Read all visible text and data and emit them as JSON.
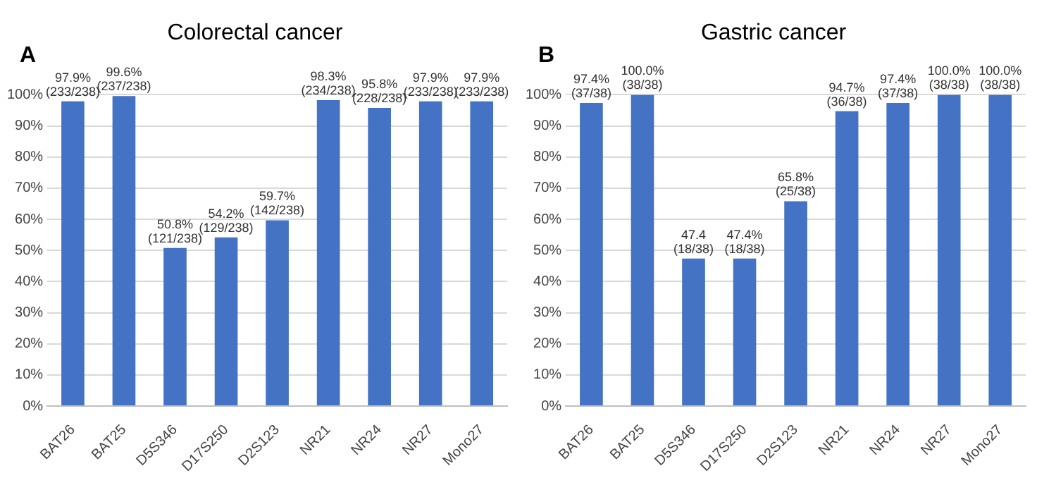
{
  "chart_data": [
    {
      "type": "bar",
      "title": "Colorectal cancer",
      "annotations": [
        "A"
      ],
      "categories": [
        "BAT26",
        "BAT25",
        "D5S346",
        "D17S250",
        "D2S123",
        "NR21",
        "NR24",
        "NR27",
        "Mono27"
      ],
      "values": [
        97.9,
        99.6,
        50.8,
        54.2,
        59.7,
        98.3,
        95.8,
        97.9,
        97.9
      ],
      "color": "#4472c4",
      "value_labels": [
        "97.9%\n(233/238)",
        "99.6%\n(237/238)",
        "50.8%\n(121/238)",
        "54.2%\n(129/238)",
        "59.7%\n(142/238)",
        "98.3%\n(234/238)",
        "95.8%\n(228/238)",
        "97.9%\n(233/238)",
        "97.9%\n(233/238)"
      ],
      "ylim": [
        0,
        100
      ],
      "yticks": [
        {
          "value": 0,
          "label": "0%"
        },
        {
          "value": 10,
          "label": "10%"
        },
        {
          "value": 20,
          "label": "20%"
        },
        {
          "value": 30,
          "label": "30%"
        },
        {
          "value": 40,
          "label": "40%"
        },
        {
          "value": 50,
          "label": "50%"
        },
        {
          "value": 60,
          "label": "60%"
        },
        {
          "value": 70,
          "label": "70%"
        },
        {
          "value": 80,
          "label": "80%"
        },
        {
          "value": 90,
          "label": "90%"
        },
        {
          "value": 100,
          "label": "100%"
        }
      ],
      "grid": "y"
    },
    {
      "type": "bar",
      "title": "Gastric cancer",
      "annotations": [
        "B"
      ],
      "categories": [
        "BAT26",
        "BAT25",
        "D5S346",
        "D17S250",
        "D2S123",
        "NR21",
        "NR24",
        "NR27",
        "Mono27"
      ],
      "values": [
        97.4,
        100,
        47.4,
        47.4,
        65.8,
        94.7,
        97.4,
        100,
        100
      ],
      "color": "#4472c4",
      "value_labels": [
        "97.4%\n(37/38)",
        "100.0%\n(38/38)",
        "47.4\n(18/38)",
        "47.4%\n(18/38)",
        "65.8%\n(25/38)",
        "94.7%\n(36/38)",
        "97.4%\n(37/38)",
        "100.0%\n(38/38)",
        "100.0%\n(38/38)"
      ],
      "ylim": [
        0,
        100
      ],
      "yticks": [
        {
          "value": 0,
          "label": "0%"
        },
        {
          "value": 10,
          "label": "10%"
        },
        {
          "value": 20,
          "label": "20%"
        },
        {
          "value": 30,
          "label": "30%"
        },
        {
          "value": 40,
          "label": "40%"
        },
        {
          "value": 50,
          "label": "50%"
        },
        {
          "value": 60,
          "label": "60%"
        },
        {
          "value": 70,
          "label": "70%"
        },
        {
          "value": 80,
          "label": "80%"
        },
        {
          "value": 90,
          "label": "90%"
        },
        {
          "value": 100,
          "label": "100%"
        }
      ],
      "grid": "y"
    }
  ]
}
